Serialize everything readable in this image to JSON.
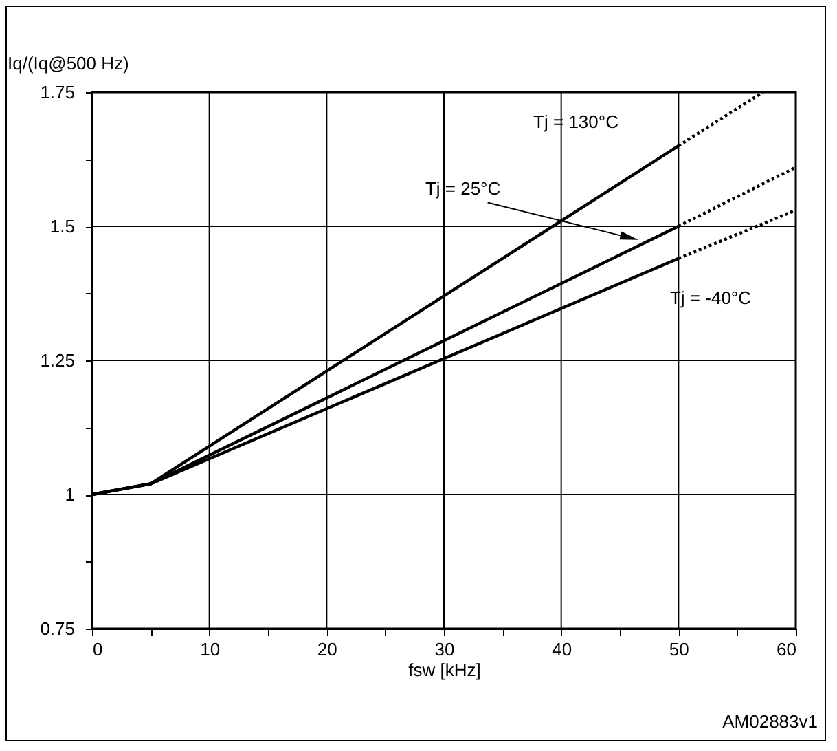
{
  "chart_data": {
    "type": "line",
    "xlabel": "fsw [kHz]",
    "ylabel": "Iq/(Iq@500 Hz)",
    "xlim": [
      0,
      60
    ],
    "ylim": [
      0.75,
      1.75
    ],
    "xticks": [
      0,
      {
        "value": 5,
        "label": null
      },
      10,
      {
        "value": 15,
        "label": null
      },
      20,
      {
        "value": 25,
        "label": null
      },
      30,
      {
        "value": 35,
        "label": null
      },
      40,
      {
        "value": 45,
        "label": null
      },
      50,
      {
        "value": 55,
        "label": null
      },
      60
    ],
    "yticks": [
      0.75,
      {
        "value": 0.875,
        "label": null
      },
      1,
      {
        "value": 1.125,
        "label": null
      },
      1.25,
      {
        "value": 1.375,
        "label": null
      },
      1.5,
      {
        "value": 1.625,
        "label": null
      },
      1.75
    ],
    "grid": true,
    "marker": "none",
    "series": [
      {
        "color": "#000000",
        "x": [
          0,
          5,
          50
        ],
        "values": [
          1,
          1.02,
          1.65
        ],
        "line_style": "solid"
      },
      {
        "color": "#000000",
        "x": [
          50,
          57.2
        ],
        "values": [
          1.65,
          1.75
        ],
        "line_style": "dotted"
      },
      {
        "color": "#000000",
        "x": [
          0,
          5,
          50
        ],
        "values": [
          1,
          1.02,
          1.5
        ],
        "line_style": "solid"
      },
      {
        "color": "#000000",
        "x": [
          50,
          60
        ],
        "values": [
          1.5,
          1.61
        ],
        "line_style": "dotted"
      },
      {
        "color": "#000000",
        "x": [
          0,
          5,
          50
        ],
        "values": [
          1,
          1.02,
          1.44
        ],
        "line_style": "solid"
      },
      {
        "color": "#000000",
        "x": [
          50,
          60
        ],
        "values": [
          1.44,
          1.53
        ],
        "line_style": "dotted"
      }
    ],
    "annotations": [
      "Tj = 130°C",
      {
        "text": "Tj = 25°C",
        "x": 46.5,
        "y": 1.475
      },
      "Tj = -40°C",
      "AM02883v1"
    ]
  }
}
